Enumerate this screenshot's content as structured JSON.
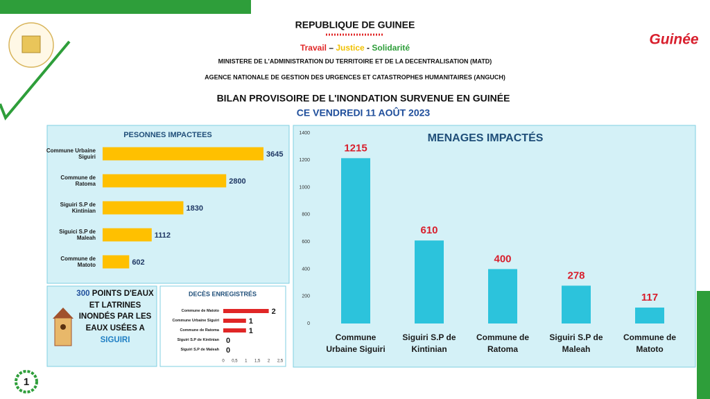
{
  "header": {
    "country": "REPUBLIQUE DE GUINEE",
    "motto": [
      "Travail",
      " – ",
      "Justice",
      " - ",
      "Solidarité"
    ],
    "ministry": "MINISTERE DE L'ADMINISTRATION DU TERRITOIRE ET DE LA DECENTRALISATION (MATD)",
    "agency": "AGENCE NATIONALE DE GESTION DES URGENCES ET CATASTROPHES HUMANITAIRES (ANGUCH)",
    "title": "BILAN PROVISOIRE DE L'INONDATION SURVENUE EN GUINÉE",
    "date": "CE VENDREDI 11 AOÛT 2023",
    "logo": "Guinée"
  },
  "info": {
    "count": 300,
    "text": "POINTS D'EAUX ET LATRINES INONDÉS PAR LES EAUX USÉES A",
    "place": "SIGUIRI"
  },
  "page": 1,
  "chart_data": [
    {
      "type": "hbar",
      "title": "PESONNES IMPACTEES",
      "categories": [
        "Commune Urbaine Siguiri",
        "Commune de Ratoma",
        "Siguiri S.P de Kintinian",
        "Siguici S.P de Maleah",
        "Commune de Matoto"
      ],
      "values": [
        3645,
        2800,
        1830,
        1112,
        602
      ],
      "color": "#ffc000"
    },
    {
      "type": "hbar",
      "title": "DECÈS ENREGISTRÉS",
      "categories": [
        "Commune de Matoto",
        "Commune Urbaine Siguiri",
        "Commune de Ratoma",
        "Siguiri S.P de Kintinian",
        "Siguiri S.P de Maleah"
      ],
      "values": [
        2,
        1,
        1,
        0,
        0
      ],
      "color": "#e02626",
      "xlim": [
        0,
        2.5
      ],
      "xticks": [
        0,
        {
          "value": 0.5,
          "label": "0,5"
        },
        1,
        {
          "value": 1.5,
          "label": "1,5"
        },
        2,
        {
          "value": 2.5,
          "label": "2,5"
        }
      ]
    },
    {
      "type": "bar",
      "title": "MENAGES IMPACTÉS",
      "categories": [
        "Commune Urbaine Siguiri",
        "Siguiri S.P de Kintinian",
        "Commune de Ratoma",
        "Siguiri S.P de Maleah",
        "Commune de Matoto"
      ],
      "values": [
        1215,
        610,
        400,
        278,
        117
      ],
      "color": "#2cc3dc",
      "ylim": [
        0,
        1400
      ],
      "yticks": [
        0,
        200,
        400,
        600,
        800,
        1000,
        1200,
        1400
      ],
      "grid": false
    }
  ]
}
